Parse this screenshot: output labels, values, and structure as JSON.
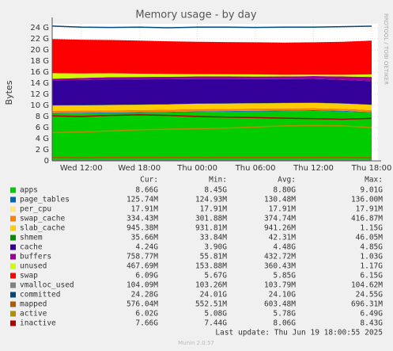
{
  "chart_data": {
    "type": "area",
    "title": "Memory usage - by day",
    "y_label": "Bytes",
    "side_text": "RRDTOOL / TOBI OETIKER",
    "footer": "Last update: Thu Jun 19 18:00:55 2025",
    "version": "Munin 2.0.57",
    "legend_headers": [
      "Cur:",
      "Min:",
      "Avg:",
      "Max:"
    ],
    "grid": true,
    "categories": [
      null,
      "Wed 12:00",
      null,
      "Wed 18:00",
      null,
      "Thu 00:00",
      null,
      "Thu 06:00",
      null,
      "Thu 12:00",
      null,
      "Thu 18:00"
    ],
    "ylim": [
      0,
      24
    ],
    "yticks": [
      0,
      {
        "value": 2,
        "label": "2 G"
      },
      {
        "value": 4,
        "label": "4 G"
      },
      {
        "value": 6,
        "label": "6 G"
      },
      {
        "value": 8,
        "label": "8 G"
      },
      {
        "value": 10,
        "label": "10 G"
      },
      {
        "value": 12,
        "label": "12 G"
      },
      {
        "value": 14,
        "label": "14 G"
      },
      {
        "value": 16,
        "label": "16 G"
      },
      {
        "value": 18,
        "label": "18 G"
      },
      {
        "value": 20,
        "label": "20 G"
      },
      {
        "value": 22,
        "label": "22 G"
      },
      {
        "value": 24,
        "label": "24 G"
      }
    ],
    "series": [
      {
        "name": "apps",
        "style": "area",
        "color": "#00cc00",
        "cur": "8.66G",
        "min": "8.45G",
        "avg": "8.80G",
        "max": "9.01G",
        "values": [
          8.5,
          8.55,
          8.6,
          8.65,
          8.7,
          8.8,
          8.85,
          8.9,
          8.95,
          9.0,
          8.9,
          8.66
        ]
      },
      {
        "name": "page_tables",
        "style": "area",
        "color": "#0066b3",
        "cur": "125.74M",
        "min": "124.93M",
        "avg": "130.48M",
        "max": "136.00M",
        "values": [
          0.126,
          0.125,
          0.128,
          0.13,
          0.131,
          0.13,
          0.132,
          0.133,
          0.135,
          0.134,
          0.13,
          0.126
        ]
      },
      {
        "name": "per_cpu",
        "style": "area",
        "color": "#ffe680",
        "cur": "17.91M",
        "min": "17.91M",
        "avg": "17.91M",
        "max": "17.91M",
        "values": [
          0.018,
          0.018,
          0.018,
          0.018,
          0.018,
          0.018,
          0.018,
          0.018,
          0.018,
          0.018,
          0.018,
          0.018
        ]
      },
      {
        "name": "swap_cache",
        "style": "area",
        "color": "#ff8000",
        "cur": "334.43M",
        "min": "301.88M",
        "avg": "374.74M",
        "max": "416.87M",
        "values": [
          0.38,
          0.37,
          0.36,
          0.37,
          0.38,
          0.39,
          0.38,
          0.37,
          0.36,
          0.35,
          0.34,
          0.33
        ]
      },
      {
        "name": "slab_cache",
        "style": "area",
        "color": "#ffcc00",
        "cur": "945.38M",
        "min": "931.81M",
        "avg": "941.26M",
        "max": "1.15G",
        "values": [
          0.94,
          0.94,
          0.94,
          0.94,
          0.94,
          0.94,
          0.94,
          0.94,
          0.94,
          0.94,
          0.94,
          0.95
        ]
      },
      {
        "name": "shmem",
        "style": "area",
        "color": "#008f00",
        "cur": "35.66M",
        "min": "33.84M",
        "avg": "42.31M",
        "max": "46.05M",
        "values": [
          0.046,
          0.045,
          0.044,
          0.043,
          0.043,
          0.042,
          0.042,
          0.041,
          0.04,
          0.039,
          0.038,
          0.036
        ]
      },
      {
        "name": "cache",
        "style": "area",
        "color": "#330099",
        "cur": "4.24G",
        "min": "3.90G",
        "avg": "4.48G",
        "max": "4.85G",
        "values": [
          4.5,
          4.55,
          4.6,
          4.55,
          4.5,
          4.45,
          4.4,
          4.35,
          4.3,
          4.3,
          4.25,
          4.24
        ]
      },
      {
        "name": "buffers",
        "style": "area",
        "color": "#990099",
        "cur": "758.77M",
        "min": "55.81M",
        "avg": "432.72M",
        "max": "1.03G",
        "values": [
          0.3,
          0.35,
          0.4,
          0.42,
          0.45,
          0.45,
          0.45,
          0.45,
          0.48,
          0.5,
          0.6,
          0.76
        ]
      },
      {
        "name": "unused",
        "style": "area",
        "color": "#ccff00",
        "cur": "467.69M",
        "min": "153.88M",
        "avg": "360.43M",
        "max": "1.17G",
        "values": [
          1.0,
          0.8,
          0.7,
          0.6,
          0.5,
          0.4,
          0.4,
          0.38,
          0.3,
          0.25,
          0.3,
          0.47
        ]
      },
      {
        "name": "swap",
        "style": "area",
        "color": "#ff0000",
        "cur": "6.09G",
        "min": "5.67G",
        "avg": "5.85G",
        "max": "6.15G",
        "values": [
          6.15,
          6.1,
          6.0,
          5.95,
          5.9,
          5.85,
          5.8,
          5.8,
          5.8,
          5.85,
          5.95,
          6.09
        ]
      },
      {
        "name": "vmalloc_used",
        "style": "line",
        "color": "#808080",
        "cur": "104.09M",
        "min": "103.26M",
        "avg": "103.79M",
        "max": "104.62M",
        "values": [
          0.104,
          0.104,
          0.104,
          0.104,
          0.104,
          0.104,
          0.104,
          0.104,
          0.104,
          0.104,
          0.104,
          0.104
        ]
      },
      {
        "name": "committed",
        "style": "line",
        "color": "#00487d",
        "cur": "24.28G",
        "min": "24.01G",
        "avg": "24.10G",
        "max": "24.55G",
        "values": [
          24.3,
          24.1,
          24.05,
          24.1,
          24.0,
          24.1,
          24.1,
          24.05,
          24.1,
          24.1,
          24.2,
          24.28
        ]
      },
      {
        "name": "mapped",
        "style": "line",
        "color": "#b35a00",
        "cur": "576.04M",
        "min": "552.51M",
        "avg": "603.48M",
        "max": "696.31M",
        "values": [
          0.6,
          0.58,
          0.6,
          0.62,
          0.6,
          0.59,
          0.6,
          0.61,
          0.6,
          0.6,
          0.59,
          0.58
        ]
      },
      {
        "name": "active",
        "style": "line",
        "color": "#b38f00",
        "cur": "6.02G",
        "min": "5.08G",
        "avg": "5.78G",
        "max": "6.49G",
        "values": [
          5.1,
          5.2,
          5.4,
          5.6,
          5.7,
          5.8,
          5.9,
          6.1,
          6.3,
          6.4,
          6.3,
          6.02
        ]
      },
      {
        "name": "inactive",
        "style": "line",
        "color": "#b30000",
        "cur": "7.66G",
        "min": "7.44G",
        "avg": "8.06G",
        "max": "8.43G",
        "values": [
          8.1,
          8.0,
          8.2,
          8.3,
          8.2,
          8.0,
          7.9,
          7.8,
          7.7,
          7.6,
          7.5,
          7.66
        ]
      }
    ]
  }
}
